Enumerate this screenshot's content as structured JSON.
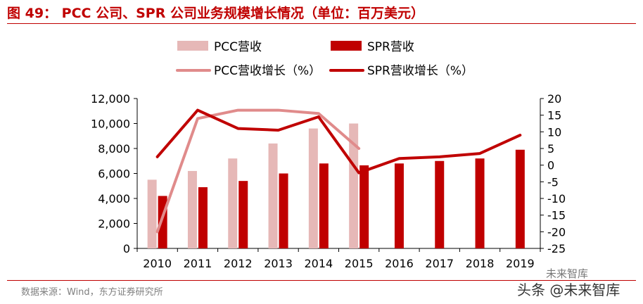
{
  "header": {
    "title": "图 49： PCC 公司、SPR 公司业务规模增长情况（单位：百万美元）"
  },
  "footer": {
    "source": "数据来源：Wind，东方证券研究所"
  },
  "watermark": {
    "line1": "未来智库",
    "line2": "头条 @未来智库"
  },
  "colors": {
    "pcc_bar": "#e6b8b7",
    "spr_bar": "#c00000",
    "pcc_line": "#e08b8b",
    "spr_line": "#c00000",
    "accent": "#c00000"
  },
  "chart_data": {
    "type": "bar",
    "categories": [
      "2010",
      "2011",
      "2012",
      "2013",
      "2014",
      "2015",
      "2016",
      "2017",
      "2018",
      "2019"
    ],
    "series": [
      {
        "name": "PCC营收",
        "type": "bar",
        "axis": "left",
        "values": [
          5500,
          6200,
          7200,
          8400,
          9600,
          10000,
          null,
          null,
          null,
          null
        ]
      },
      {
        "name": "SPR营收",
        "type": "bar",
        "axis": "left",
        "values": [
          4200,
          4900,
          5400,
          6000,
          6800,
          6650,
          6800,
          7000,
          7200,
          7900
        ]
      },
      {
        "name": "PCC营收增长（%）",
        "type": "line",
        "axis": "right",
        "values": [
          -20,
          14,
          16.5,
          16.5,
          15.5,
          5,
          null,
          null,
          null,
          null
        ]
      },
      {
        "name": "SPR营收增长（%）",
        "type": "line",
        "axis": "right",
        "values": [
          2.5,
          16.5,
          11,
          10.5,
          14.5,
          -2.3,
          2,
          2.5,
          3.5,
          9
        ]
      }
    ],
    "y_left": {
      "ylim": [
        0,
        12000
      ],
      "ticks": [
        "0",
        "2,000",
        "4,000",
        "6,000",
        "8,000",
        "10,000",
        "12,000"
      ]
    },
    "y_right": {
      "ylim": [
        -25,
        20
      ],
      "ticks": [
        "-25",
        "-20",
        "-15",
        "-10",
        "-5",
        "0",
        "5",
        "10",
        "15",
        "20"
      ]
    },
    "legend": [
      {
        "label": "PCC营收",
        "kind": "bar",
        "series": 0
      },
      {
        "label": "SPR营收",
        "kind": "bar",
        "series": 1
      },
      {
        "label": "PCC营收增长（%）",
        "kind": "line",
        "series": 2
      },
      {
        "label": "SPR营收增长（%）",
        "kind": "line",
        "series": 3
      }
    ],
    "legend_position": "top",
    "grid": false
  }
}
